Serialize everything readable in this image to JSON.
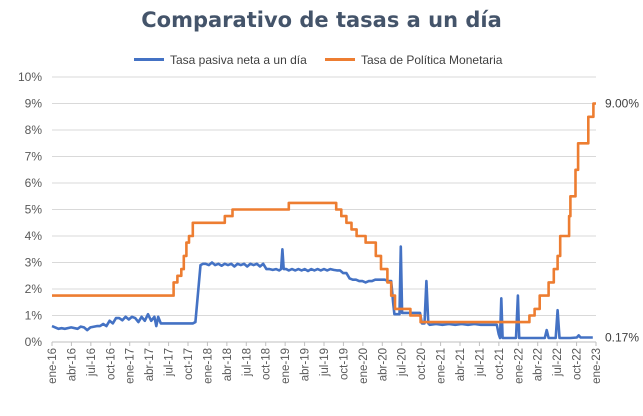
{
  "chart_data": {
    "type": "line",
    "title": "Comparativo de tasas a un día",
    "xlabel": "",
    "ylabel": "",
    "ylim": [
      0,
      10
    ],
    "yticks": [
      "0%",
      "1%",
      "2%",
      "3%",
      "4%",
      "5%",
      "6%",
      "7%",
      "8%",
      "9%",
      "10%"
    ],
    "xticks": [
      "ene-16",
      "abr-16",
      "jul-16",
      "oct-16",
      "ene-17",
      "abr-17",
      "jul-17",
      "oct-17",
      "ene-18",
      "abr-18",
      "jul-18",
      "oct-18",
      "ene-19",
      "abr-19",
      "jul-19",
      "oct-19",
      "ene-20",
      "abr-20",
      "jul-20",
      "oct-20",
      "ene-21",
      "abr-21",
      "jul-21",
      "oct-21",
      "ene-22",
      "abr-22",
      "jul-22",
      "oct-22",
      "ene-23"
    ],
    "x_unit": "months since ene-16",
    "xlim": [
      0,
      85
    ],
    "grid": true,
    "legend_position": "top",
    "series": [
      {
        "name": "Tasa pasiva neta a un día",
        "color": "#4472c4",
        "end_label": "0.17%",
        "points": [
          [
            0,
            0.6
          ],
          [
            0.5,
            0.55
          ],
          [
            1,
            0.5
          ],
          [
            1.5,
            0.52
          ],
          [
            2,
            0.5
          ],
          [
            3,
            0.55
          ],
          [
            4,
            0.5
          ],
          [
            4.5,
            0.58
          ],
          [
            5,
            0.55
          ],
          [
            5.5,
            0.45
          ],
          [
            6,
            0.55
          ],
          [
            7,
            0.6
          ],
          [
            7.5,
            0.6
          ],
          [
            8,
            0.68
          ],
          [
            8.5,
            0.6
          ],
          [
            9,
            0.8
          ],
          [
            9.5,
            0.7
          ],
          [
            10,
            0.9
          ],
          [
            10.5,
            0.9
          ],
          [
            11,
            0.82
          ],
          [
            11.5,
            0.95
          ],
          [
            12,
            0.85
          ],
          [
            12.5,
            0.95
          ],
          [
            13,
            0.9
          ],
          [
            13.5,
            0.75
          ],
          [
            14,
            0.95
          ],
          [
            14.5,
            0.8
          ],
          [
            15,
            1.05
          ],
          [
            15.5,
            0.8
          ],
          [
            16,
            0.95
          ],
          [
            16.3,
            0.6
          ],
          [
            16.6,
            0.95
          ],
          [
            17,
            0.7
          ],
          [
            18,
            0.7
          ],
          [
            19,
            0.7
          ],
          [
            20,
            0.7
          ],
          [
            21,
            0.7
          ],
          [
            22,
            0.7
          ],
          [
            22.4,
            0.75
          ],
          [
            22.8,
            1.8
          ],
          [
            23.2,
            2.9
          ],
          [
            23.6,
            2.95
          ],
          [
            24,
            2.95
          ],
          [
            24.5,
            2.9
          ],
          [
            25,
            3.0
          ],
          [
            25.5,
            2.9
          ],
          [
            26,
            2.95
          ],
          [
            26.5,
            2.88
          ],
          [
            27,
            2.95
          ],
          [
            27.5,
            2.9
          ],
          [
            28,
            2.95
          ],
          [
            28.5,
            2.85
          ],
          [
            29,
            2.95
          ],
          [
            29.5,
            2.9
          ],
          [
            30,
            2.95
          ],
          [
            30.5,
            2.85
          ],
          [
            31,
            2.95
          ],
          [
            31.5,
            2.9
          ],
          [
            32,
            2.95
          ],
          [
            32.5,
            2.85
          ],
          [
            33,
            2.95
          ],
          [
            33.5,
            2.75
          ],
          [
            34,
            2.75
          ],
          [
            34.5,
            2.72
          ],
          [
            35,
            2.75
          ],
          [
            35.5,
            2.7
          ],
          [
            35.8,
            2.75
          ],
          [
            36,
            3.5
          ],
          [
            36.2,
            2.75
          ],
          [
            36.6,
            2.75
          ],
          [
            37,
            2.7
          ],
          [
            37.5,
            2.75
          ],
          [
            38,
            2.7
          ],
          [
            38.5,
            2.75
          ],
          [
            39,
            2.7
          ],
          [
            39.5,
            2.75
          ],
          [
            40,
            2.68
          ],
          [
            40.5,
            2.75
          ],
          [
            41,
            2.7
          ],
          [
            41.5,
            2.75
          ],
          [
            42,
            2.7
          ],
          [
            42.5,
            2.75
          ],
          [
            43,
            2.7
          ],
          [
            43.5,
            2.75
          ],
          [
            44,
            2.72
          ],
          [
            44.5,
            2.7
          ],
          [
            45,
            2.7
          ],
          [
            45.5,
            2.6
          ],
          [
            46,
            2.6
          ],
          [
            46.5,
            2.4
          ],
          [
            47,
            2.35
          ],
          [
            47.5,
            2.35
          ],
          [
            48,
            2.3
          ],
          [
            48.5,
            2.3
          ],
          [
            49,
            2.25
          ],
          [
            49.5,
            2.3
          ],
          [
            50,
            2.3
          ],
          [
            50.5,
            2.35
          ],
          [
            51,
            2.35
          ],
          [
            52,
            2.35
          ],
          [
            52.5,
            2.3
          ],
          [
            53,
            2.3
          ],
          [
            53.3,
            1.5
          ],
          [
            53.5,
            1.05
          ],
          [
            54,
            1.05
          ],
          [
            54.3,
            1.05
          ],
          [
            54.5,
            3.6
          ],
          [
            54.7,
            1.1
          ],
          [
            55,
            1.1
          ],
          [
            56,
            1.1
          ],
          [
            57,
            1.1
          ],
          [
            57.5,
            1.1
          ],
          [
            57.8,
            0.7
          ],
          [
            58.2,
            0.7
          ],
          [
            58.5,
            2.3
          ],
          [
            58.8,
            0.7
          ],
          [
            59,
            0.65
          ],
          [
            60,
            0.68
          ],
          [
            61,
            0.65
          ],
          [
            62,
            0.68
          ],
          [
            63,
            0.65
          ],
          [
            64,
            0.68
          ],
          [
            65,
            0.65
          ],
          [
            66,
            0.68
          ],
          [
            67,
            0.65
          ],
          [
            68,
            0.65
          ],
          [
            69,
            0.65
          ],
          [
            69.5,
            0.65
          ],
          [
            69.8,
            0.3
          ],
          [
            70,
            0.15
          ],
          [
            70.2,
            1.65
          ],
          [
            70.4,
            0.15
          ],
          [
            70.6,
            0.15
          ],
          [
            71,
            0.15
          ],
          [
            72,
            0.15
          ],
          [
            72.5,
            0.15
          ],
          [
            72.8,
            1.75
          ],
          [
            73,
            0.15
          ],
          [
            74,
            0.15
          ],
          [
            75,
            0.15
          ],
          [
            76,
            0.15
          ],
          [
            77,
            0.15
          ],
          [
            77.3,
            0.45
          ],
          [
            77.6,
            0.15
          ],
          [
            78,
            0.15
          ],
          [
            78.7,
            0.15
          ],
          [
            79,
            1.2
          ],
          [
            79.3,
            0.15
          ],
          [
            80,
            0.15
          ],
          [
            81,
            0.15
          ],
          [
            82,
            0.17
          ],
          [
            82.3,
            0.25
          ],
          [
            82.6,
            0.17
          ],
          [
            83,
            0.17
          ],
          [
            83.5,
            0.17
          ],
          [
            84,
            0.17
          ],
          [
            84.5,
            0.17
          ]
        ]
      },
      {
        "name": "Tasa de Política Monetaria",
        "color": "#ed7d31",
        "end_label": "9.00%",
        "points": [
          [
            0,
            1.75
          ],
          [
            19,
            1.75
          ],
          [
            19,
            2.25
          ],
          [
            19.6,
            2.25
          ],
          [
            19.6,
            2.5
          ],
          [
            20.2,
            2.5
          ],
          [
            20.2,
            2.75
          ],
          [
            20.6,
            2.75
          ],
          [
            20.6,
            3.25
          ],
          [
            21,
            3.25
          ],
          [
            21,
            3.75
          ],
          [
            21.4,
            3.75
          ],
          [
            21.4,
            4.0
          ],
          [
            22,
            4.0
          ],
          [
            22,
            4.5
          ],
          [
            27,
            4.5
          ],
          [
            27,
            4.75
          ],
          [
            28.2,
            4.75
          ],
          [
            28.2,
            5.0
          ],
          [
            37,
            5.0
          ],
          [
            37,
            5.25
          ],
          [
            44.4,
            5.25
          ],
          [
            44.4,
            5.0
          ],
          [
            45.2,
            5.0
          ],
          [
            45.2,
            4.75
          ],
          [
            46,
            4.75
          ],
          [
            46,
            4.5
          ],
          [
            46.8,
            4.5
          ],
          [
            46.8,
            4.25
          ],
          [
            47.6,
            4.25
          ],
          [
            47.6,
            4.0
          ],
          [
            49,
            4.0
          ],
          [
            49,
            3.75
          ],
          [
            50.6,
            3.75
          ],
          [
            50.6,
            3.25
          ],
          [
            51.4,
            3.25
          ],
          [
            51.4,
            2.75
          ],
          [
            52.4,
            2.75
          ],
          [
            52.4,
            2.25
          ],
          [
            53,
            2.25
          ],
          [
            53,
            1.75
          ],
          [
            53.6,
            1.75
          ],
          [
            53.6,
            1.25
          ],
          [
            56,
            1.25
          ],
          [
            56,
            1.0
          ],
          [
            57.6,
            1.0
          ],
          [
            57.6,
            0.75
          ],
          [
            74.6,
            0.75
          ],
          [
            74.6,
            1.0
          ],
          [
            75.4,
            1.0
          ],
          [
            75.4,
            1.25
          ],
          [
            76.2,
            1.25
          ],
          [
            76.2,
            1.75
          ],
          [
            77.6,
            1.75
          ],
          [
            77.6,
            2.25
          ],
          [
            78.4,
            2.25
          ],
          [
            78.4,
            2.75
          ],
          [
            79,
            2.75
          ],
          [
            79,
            3.25
          ],
          [
            79.4,
            3.25
          ],
          [
            79.4,
            4.0
          ],
          [
            80.8,
            4.0
          ],
          [
            80.8,
            4.75
          ],
          [
            81,
            4.75
          ],
          [
            81,
            5.5
          ],
          [
            81.8,
            5.5
          ],
          [
            81.8,
            6.5
          ],
          [
            82.2,
            6.5
          ],
          [
            82.2,
            7.5
          ],
          [
            83.8,
            7.5
          ],
          [
            83.8,
            8.5
          ],
          [
            84.6,
            8.5
          ],
          [
            84.6,
            9.0
          ],
          [
            85,
            9.0
          ],
          [
            85,
            9.0
          ]
        ]
      }
    ]
  }
}
